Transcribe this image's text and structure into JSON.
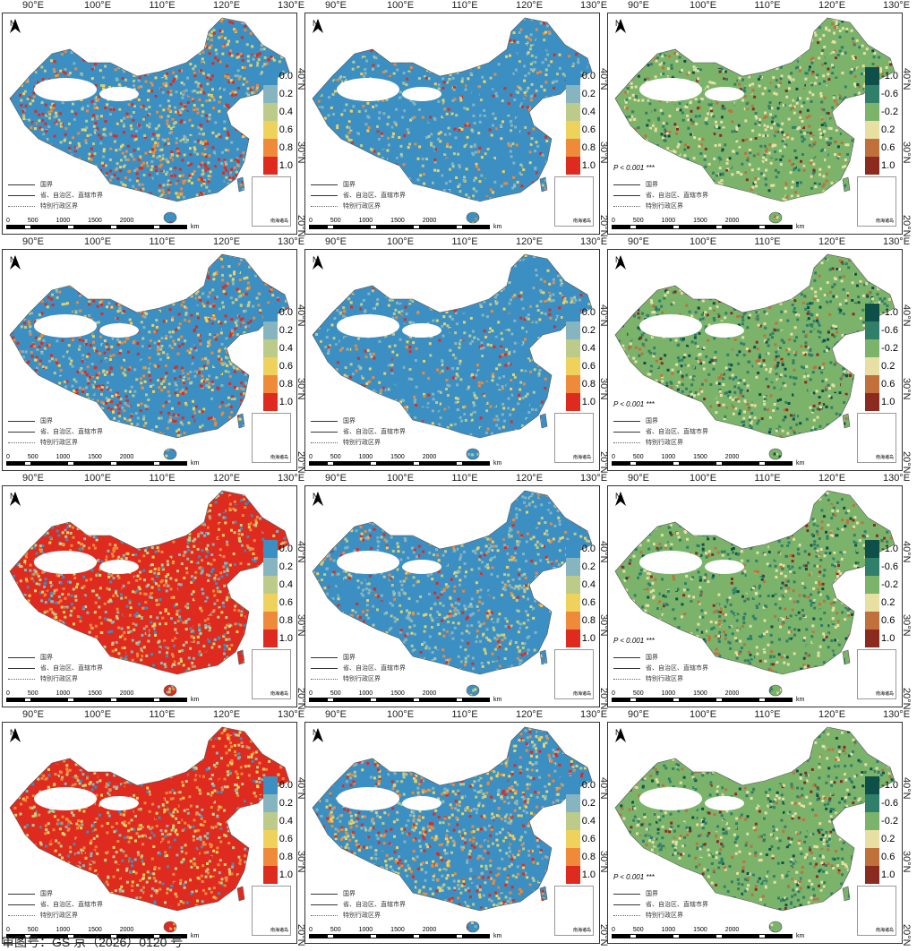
{
  "lon_labels": [
    "90°E",
    "100°E",
    "110°E",
    "120°E",
    "130°E"
  ],
  "lat_labels": [
    "40°N",
    "30°N",
    "20°N"
  ],
  "north": "N",
  "border_legend": [
    "国界",
    "省、自治区、直辖市界",
    "特别行政区界"
  ],
  "scale": {
    "ticks": [
      "0",
      "500",
      "1000",
      "1500",
      "2000"
    ],
    "unit": "km"
  },
  "inset_label": "南海诸岛",
  "p_value": "P < 0.001 ***",
  "legend_prob": {
    "labels": [
      "0.0",
      "0.2",
      "0.4",
      "0.6",
      "0.8",
      "1.0"
    ],
    "colors": [
      "#3b8fc2",
      "#86b4bf",
      "#bccb8a",
      "#eed25c",
      "#ee8a3a",
      "#df2a1f"
    ]
  },
  "legend_corr": {
    "labels": [
      "-1.0",
      "-0.6",
      "-0.2",
      "0.2",
      "0.6",
      "1.0"
    ],
    "colors": [
      "#0e4f4a",
      "#2f7f6a",
      "#7bb36b",
      "#e7e0a2",
      "#c0703a",
      "#8b2a1e"
    ]
  },
  "footer": "审图号：GS 京（2026）0120 号"
}
